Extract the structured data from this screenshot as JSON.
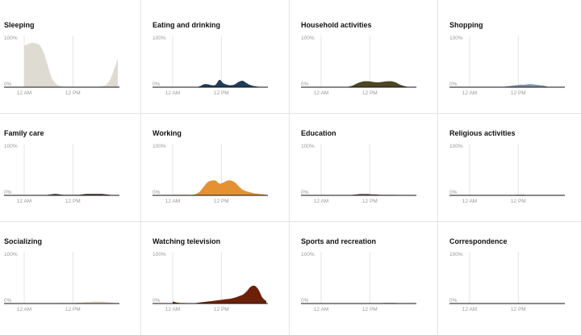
{
  "chart_data": [
    {
      "type": "area",
      "title": "Sleeping",
      "color": "#dedbd3",
      "ylim": [
        0,
        100
      ],
      "ytick_labels": [
        "100%",
        "0%"
      ],
      "xtick_labels": [
        "12 AM",
        "12 PM"
      ],
      "x": [
        0,
        1,
        2,
        3,
        4,
        5,
        6,
        7,
        8,
        9,
        10,
        11,
        12,
        13,
        14,
        15,
        16,
        17,
        18,
        19,
        20,
        21,
        22,
        23,
        24
      ],
      "values": [
        84,
        88,
        90,
        89,
        85,
        70,
        45,
        20,
        8,
        3,
        1,
        0,
        0,
        0,
        0,
        0,
        0,
        0,
        0,
        1,
        2,
        5,
        15,
        35,
        58
      ]
    },
    {
      "type": "area",
      "title": "Eating and drinking",
      "color": "#1f3d56",
      "ylim": [
        0,
        100
      ],
      "ytick_labels": [
        "100%",
        "0%"
      ],
      "xtick_labels": [
        "12 AM",
        "12 PM"
      ],
      "x": [
        0,
        1,
        2,
        3,
        4,
        5,
        6,
        7,
        8,
        9,
        10,
        11,
        12,
        13,
        14,
        15,
        16,
        17,
        18,
        19,
        20,
        21,
        22,
        23,
        24
      ],
      "values": [
        0,
        0,
        0,
        0,
        0,
        0,
        0,
        2,
        6,
        6,
        4,
        5,
        15,
        8,
        5,
        4,
        6,
        11,
        13,
        8,
        4,
        2,
        1,
        0,
        0
      ]
    },
    {
      "type": "area",
      "title": "Household activities",
      "color": "#4f4523",
      "ylim": [
        0,
        100
      ],
      "ytick_labels": [
        "100%",
        "0%"
      ],
      "xtick_labels": [
        "12 AM",
        "12 PM"
      ],
      "x": [
        0,
        1,
        2,
        3,
        4,
        5,
        6,
        7,
        8,
        9,
        10,
        11,
        12,
        13,
        14,
        15,
        16,
        17,
        18,
        19,
        20,
        21,
        22,
        23,
        24
      ],
      "values": [
        0,
        0,
        0,
        0,
        0,
        0,
        0,
        1,
        3,
        7,
        10,
        12,
        12,
        11,
        10,
        10,
        11,
        12,
        12,
        10,
        6,
        3,
        1,
        0,
        0
      ]
    },
    {
      "type": "area",
      "title": "Shopping",
      "color": "#8194aa",
      "ylim": [
        0,
        100
      ],
      "ytick_labels": [
        "100%",
        "0%"
      ],
      "xtick_labels": [
        "12 AM",
        "12 PM"
      ],
      "x": [
        0,
        1,
        2,
        3,
        4,
        5,
        6,
        7,
        8,
        9,
        10,
        11,
        12,
        13,
        14,
        15,
        16,
        17,
        18,
        19,
        20,
        21,
        22,
        23,
        24
      ],
      "values": [
        0,
        0,
        0,
        0,
        0,
        0,
        0,
        0,
        0,
        1,
        2,
        3,
        4,
        5,
        5,
        6,
        6,
        5,
        4,
        3,
        1,
        0,
        0,
        0,
        0
      ]
    },
    {
      "type": "area",
      "title": "Family care",
      "color": "#4e4541",
      "ylim": [
        0,
        100
      ],
      "ytick_labels": [
        "100%",
        "0%"
      ],
      "xtick_labels": [
        "12 AM",
        "12 PM"
      ],
      "x": [
        0,
        1,
        2,
        3,
        4,
        5,
        6,
        7,
        8,
        9,
        10,
        11,
        12,
        13,
        14,
        15,
        16,
        17,
        18,
        19,
        20,
        21,
        22,
        23,
        24
      ],
      "values": [
        0,
        0,
        0,
        0,
        0,
        0,
        1,
        2,
        3,
        2,
        1,
        1,
        1,
        1,
        1,
        2,
        3,
        3,
        3,
        3,
        3,
        2,
        1,
        0,
        0
      ]
    },
    {
      "type": "area",
      "title": "Working",
      "color": "#e39131",
      "ylim": [
        0,
        100
      ],
      "ytick_labels": [
        "100%",
        "0%"
      ],
      "xtick_labels": [
        "12 AM",
        "12 PM"
      ],
      "x": [
        0,
        1,
        2,
        3,
        4,
        5,
        6,
        7,
        8,
        9,
        10,
        11,
        12,
        13,
        14,
        15,
        16,
        17,
        18,
        19,
        20,
        21,
        22,
        23,
        24
      ],
      "values": [
        1,
        1,
        1,
        1,
        1,
        1,
        3,
        8,
        18,
        27,
        30,
        30,
        24,
        26,
        30,
        30,
        26,
        18,
        11,
        8,
        6,
        4,
        3,
        2,
        1
      ]
    },
    {
      "type": "area",
      "title": "Education",
      "color": "#7a6a6e",
      "ylim": [
        0,
        100
      ],
      "ytick_labels": [
        "100%",
        "0%"
      ],
      "xtick_labels": [
        "12 AM",
        "12 PM"
      ],
      "x": [
        0,
        1,
        2,
        3,
        4,
        5,
        6,
        7,
        8,
        9,
        10,
        11,
        12,
        13,
        14,
        15,
        16,
        17,
        18,
        19,
        20,
        21,
        22,
        23,
        24
      ],
      "values": [
        0,
        0,
        0,
        0,
        0,
        0,
        0,
        0,
        1,
        2,
        3,
        3,
        3,
        2,
        2,
        1,
        1,
        1,
        1,
        1,
        0,
        0,
        0,
        0,
        0
      ]
    },
    {
      "type": "area",
      "title": "Religious activities",
      "color": "#3a3a3a",
      "ylim": [
        0,
        100
      ],
      "ytick_labels": [
        "100%",
        "0%"
      ],
      "xtick_labels": [
        "12 AM",
        "12 PM"
      ],
      "x": [
        0,
        1,
        2,
        3,
        4,
        5,
        6,
        7,
        8,
        9,
        10,
        11,
        12,
        13,
        14,
        15,
        16,
        17,
        18,
        19,
        20,
        21,
        22,
        23,
        24
      ],
      "values": [
        0,
        0,
        0,
        0,
        0,
        0,
        0,
        0,
        0,
        0,
        0,
        0,
        1,
        1,
        1,
        0,
        0,
        0,
        0,
        0,
        0,
        0,
        0,
        0,
        0
      ]
    },
    {
      "type": "area",
      "title": "Socializing",
      "color": "#e2d2bf",
      "ylim": [
        0,
        100
      ],
      "ytick_labels": [
        "100%",
        "0%"
      ],
      "xtick_labels": [
        "12 AM",
        "12 PM"
      ],
      "x": [
        0,
        1,
        2,
        3,
        4,
        5,
        6,
        7,
        8,
        9,
        10,
        11,
        12,
        13,
        14,
        15,
        16,
        17,
        18,
        19,
        20,
        21,
        22,
        23,
        24
      ],
      "values": [
        0,
        0,
        0,
        0,
        0,
        0,
        0,
        0,
        0,
        1,
        1,
        1,
        1,
        1,
        2,
        2,
        3,
        3,
        4,
        4,
        4,
        3,
        2,
        1,
        0
      ]
    },
    {
      "type": "area",
      "title": "Watching television",
      "color": "#6b2008",
      "ylim": [
        0,
        100
      ],
      "ytick_labels": [
        "100%",
        "0%"
      ],
      "xtick_labels": [
        "12 AM",
        "12 PM"
      ],
      "x": [
        0,
        1,
        2,
        3,
        4,
        5,
        6,
        7,
        8,
        9,
        10,
        11,
        12,
        13,
        14,
        15,
        16,
        17,
        18,
        19,
        20,
        21,
        22,
        23,
        24
      ],
      "values": [
        4,
        2,
        1,
        1,
        0,
        0,
        1,
        2,
        3,
        4,
        5,
        6,
        7,
        8,
        9,
        10,
        12,
        15,
        18,
        25,
        34,
        36,
        28,
        12,
        5
      ]
    },
    {
      "type": "area",
      "title": "Sports and recreation",
      "color": "#3a3a3a",
      "ylim": [
        0,
        100
      ],
      "ytick_labels": [
        "100%",
        "0%"
      ],
      "xtick_labels": [
        "12 AM",
        "12 PM"
      ],
      "x": [
        0,
        1,
        2,
        3,
        4,
        5,
        6,
        7,
        8,
        9,
        10,
        11,
        12,
        13,
        14,
        15,
        16,
        17,
        18,
        19,
        20,
        21,
        22,
        23,
        24
      ],
      "values": [
        0,
        0,
        0,
        0,
        0,
        0,
        0,
        0,
        0,
        0,
        0,
        0,
        0,
        0,
        0,
        0,
        1,
        1,
        1,
        1,
        0,
        0,
        0,
        0,
        0
      ]
    },
    {
      "type": "area",
      "title": "Correspondence",
      "color": "#3a3a3a",
      "ylim": [
        0,
        100
      ],
      "ytick_labels": [
        "100%",
        "0%"
      ],
      "xtick_labels": [
        "12 AM",
        "12 PM"
      ],
      "x": [
        0,
        1,
        2,
        3,
        4,
        5,
        6,
        7,
        8,
        9,
        10,
        11,
        12,
        13,
        14,
        15,
        16,
        17,
        18,
        19,
        20,
        21,
        22,
        23,
        24
      ],
      "values": [
        0,
        0,
        0,
        0,
        0,
        0,
        0,
        0,
        0,
        0,
        0,
        0,
        0,
        0,
        0,
        0,
        0,
        0,
        0,
        0,
        0,
        0,
        0,
        0,
        0
      ]
    }
  ]
}
